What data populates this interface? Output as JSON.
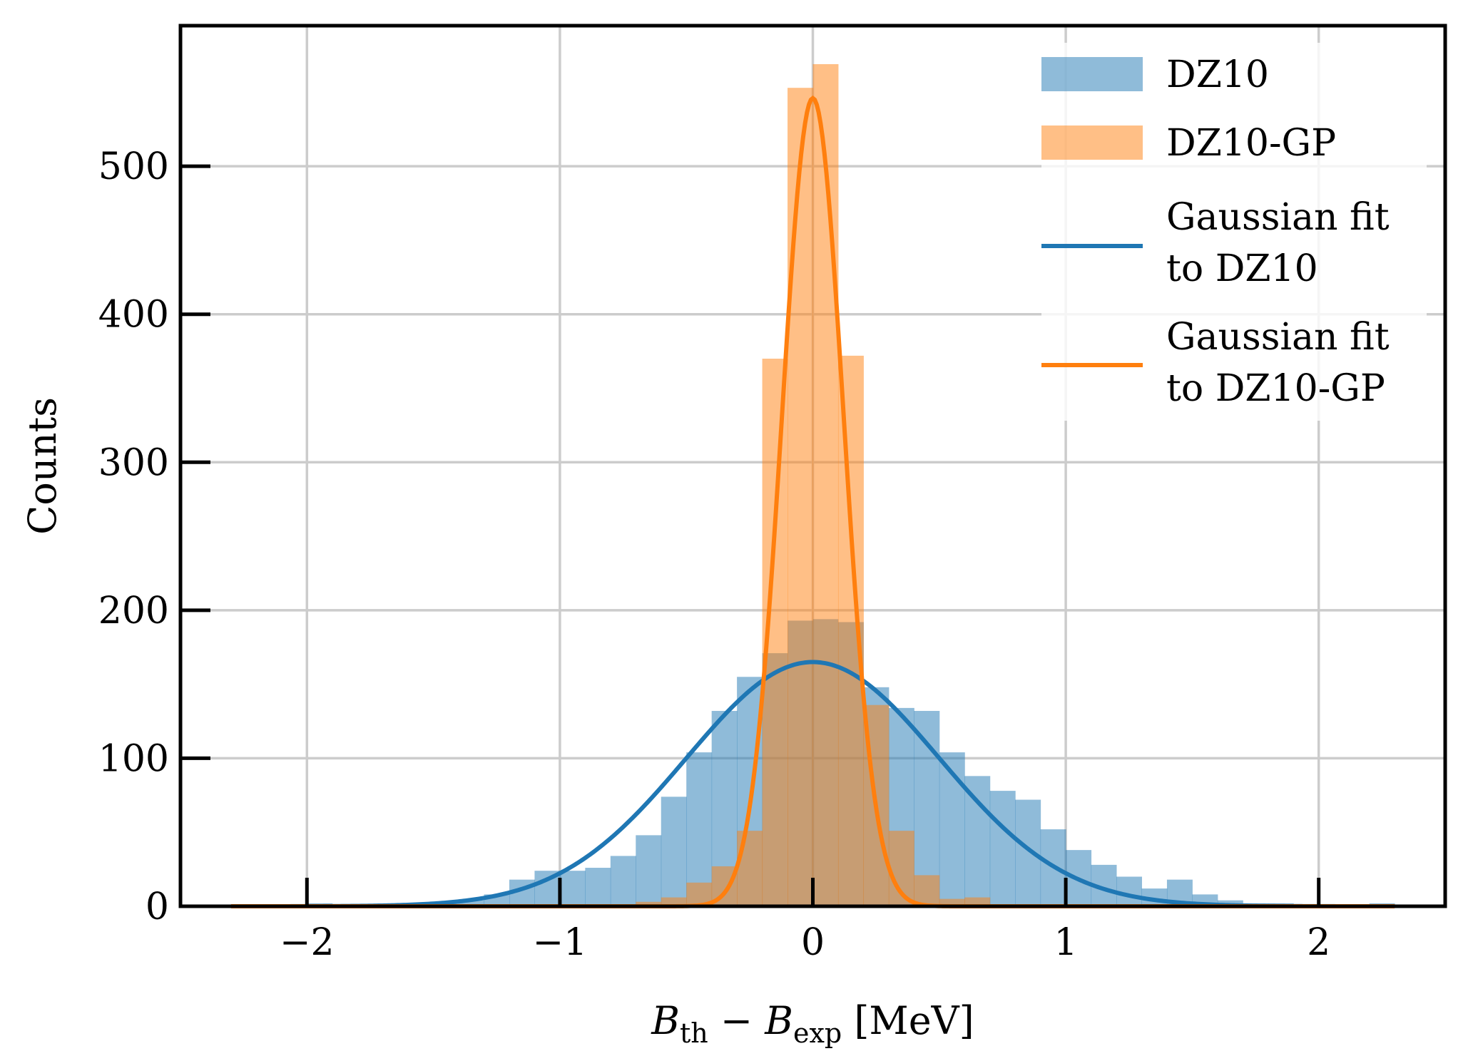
{
  "chart_data": {
    "type": "bar",
    "title": "",
    "xlabel": {
      "main1": "B",
      "sub1": "th",
      "minus": " − ",
      "main2": "B",
      "sub2": "exp",
      "unit": " [MeV]"
    },
    "ylabel": "Counts",
    "xlim": [
      -2.5,
      2.5
    ],
    "ylim": [
      0,
      595
    ],
    "grid": true,
    "legend_position": "top-right",
    "x_ticks": [
      {
        "value": -2,
        "label": "−2"
      },
      {
        "value": -1,
        "label": "−1"
      },
      {
        "value": 0,
        "label": "0"
      },
      {
        "value": 1,
        "label": "1"
      },
      {
        "value": 2,
        "label": "2"
      }
    ],
    "y_ticks": [
      {
        "value": 0,
        "label": "0"
      },
      {
        "value": 100,
        "label": "100"
      },
      {
        "value": 200,
        "label": "200"
      },
      {
        "value": 300,
        "label": "300"
      },
      {
        "value": 400,
        "label": "400"
      },
      {
        "value": 500,
        "label": "500"
      }
    ],
    "colors": {
      "dz10_bar": "#1f77b4",
      "dz10gp_bar": "#ff7f0e",
      "dz10_fit": "#1f77b4",
      "dz10gp_fit": "#ff7f0e"
    },
    "series": [
      {
        "name": "DZ10",
        "kind": "histogram",
        "bin_width": 0.1,
        "bin_starts": [
          -2.0,
          -1.9,
          -1.8,
          -1.7,
          -1.6,
          -1.5,
          -1.4,
          -1.3,
          -1.2,
          -1.1,
          -1.0,
          -0.9,
          -0.8,
          -0.7,
          -0.6,
          -0.5,
          -0.4,
          -0.3,
          -0.2,
          -0.1,
          0.0,
          0.1,
          0.2,
          0.3,
          0.4,
          0.5,
          0.6,
          0.7,
          0.8,
          0.9,
          1.0,
          1.1,
          1.2,
          1.3,
          1.4,
          1.5,
          1.6,
          1.7,
          1.8,
          1.9,
          2.0,
          2.1,
          2.2,
          2.3
        ],
        "values": [
          2,
          1,
          1,
          1,
          2,
          3,
          4,
          8,
          18,
          24,
          24,
          26,
          34,
          48,
          74,
          104,
          132,
          155,
          171,
          193,
          194,
          192,
          148,
          134,
          132,
          104,
          88,
          78,
          72,
          52,
          38,
          28,
          20,
          12,
          18,
          8,
          4,
          2,
          2,
          1,
          1,
          1,
          2,
          1
        ]
      },
      {
        "name": "DZ10-GP",
        "kind": "histogram",
        "bin_width": 0.1,
        "bin_starts": [
          -0.7,
          -0.6,
          -0.5,
          -0.4,
          -0.3,
          -0.2,
          -0.1,
          0.0,
          0.1,
          0.2,
          0.3,
          0.4,
          0.5,
          0.6
        ],
        "values": [
          3,
          6,
          16,
          27,
          51,
          370,
          553,
          569,
          372,
          136,
          51,
          21,
          5,
          6
        ]
      },
      {
        "name": "Gaussian fit to DZ10",
        "kind": "line",
        "mean": 0.0,
        "sigma": 0.5,
        "amplitude": 165
      },
      {
        "name": "Gaussian fit to DZ10-GP",
        "kind": "line",
        "mean": 0.0,
        "sigma": 0.122,
        "amplitude": 546
      }
    ],
    "legend": [
      {
        "lines": [
          "DZ10"
        ]
      },
      {
        "lines": [
          "DZ10-GP"
        ]
      },
      {
        "lines": [
          "Gaussian fit",
          "to DZ10"
        ]
      },
      {
        "lines": [
          "Gaussian fit",
          "to DZ10-GP"
        ]
      }
    ]
  }
}
